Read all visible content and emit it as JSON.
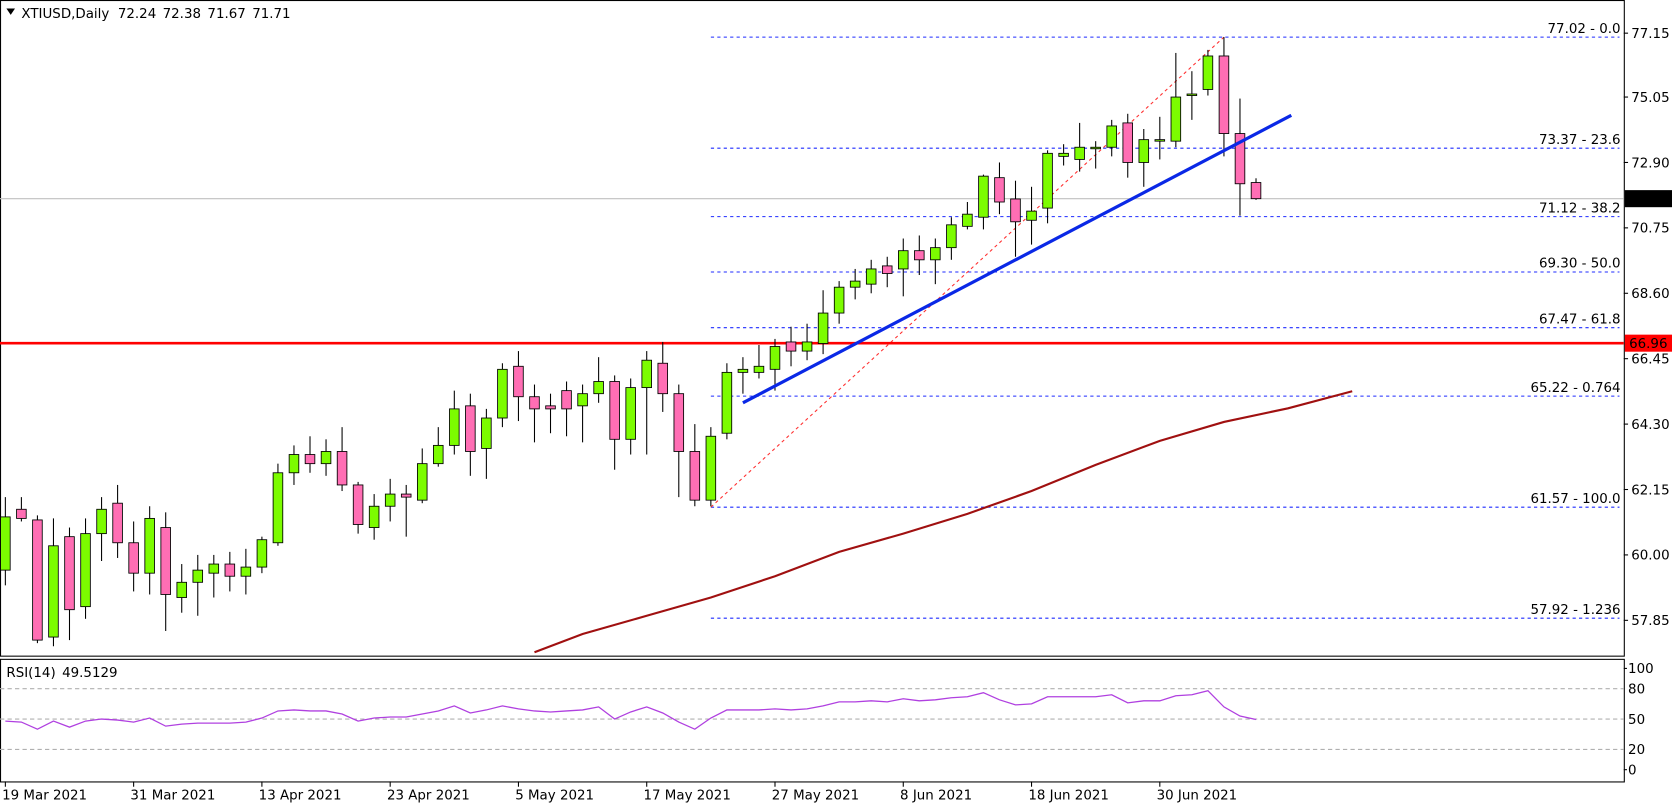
{
  "chart_data": {
    "type": "candlestick",
    "symbol": "XTIUSD,Daily",
    "categories": [
      "19 Mar 2021",
      null,
      null,
      null,
      null,
      null,
      null,
      null,
      "31 Mar 2021",
      null,
      null,
      null,
      null,
      null,
      null,
      null,
      "13 Apr 2021",
      null,
      null,
      null,
      null,
      null,
      null,
      null,
      "23 Apr 2021",
      null,
      null,
      null,
      null,
      null,
      null,
      null,
      "5 May 2021",
      null,
      null,
      null,
      null,
      null,
      null,
      null,
      "17 May 2021",
      null,
      null,
      null,
      null,
      null,
      null,
      null,
      "27 May 2021",
      null,
      null,
      null,
      null,
      null,
      null,
      null,
      "8 Jun 2021",
      null,
      null,
      null,
      null,
      null,
      null,
      null,
      "18 Jun 2021",
      null,
      null,
      null,
      null,
      null,
      null,
      null,
      "30 Jun 2021",
      null,
      null,
      null,
      null,
      null,
      null
    ],
    "open": [
      59.5,
      61.5,
      61.15,
      57.3,
      60.6,
      58.3,
      60.7,
      61.7,
      60.4,
      59.4,
      60.9,
      58.6,
      59.1,
      59.4,
      59.7,
      59.3,
      59.6,
      60.4,
      62.7,
      63.3,
      63.0,
      63.4,
      62.3,
      60.9,
      61.6,
      62.0,
      61.8,
      63.0,
      63.6,
      64.9,
      63.5,
      64.5,
      66.2,
      65.2,
      64.9,
      65.4,
      64.9,
      65.3,
      65.7,
      63.8,
      65.5,
      66.3,
      65.3,
      63.4,
      61.8,
      64.0,
      66.0,
      66.0,
      66.1,
      67.0,
      66.7,
      66.95,
      67.95,
      68.8,
      68.9,
      69.5,
      69.4,
      70.0,
      69.7,
      70.1,
      70.8,
      71.1,
      72.4,
      71.7,
      71.0,
      71.4,
      73.1,
      73.0,
      73.35,
      73.4,
      74.2,
      72.9,
      73.6,
      73.6,
      75.1,
      75.3,
      76.4,
      73.85,
      72.24
    ],
    "high": [
      61.9,
      61.9,
      61.3,
      61.2,
      60.9,
      61.2,
      61.9,
      62.3,
      61.1,
      61.6,
      61.4,
      59.7,
      60.0,
      60.0,
      60.1,
      60.2,
      60.6,
      63.0,
      63.6,
      63.9,
      63.8,
      64.2,
      62.4,
      62.0,
      62.5,
      62.3,
      63.5,
      64.2,
      65.4,
      65.3,
      64.8,
      66.3,
      66.7,
      65.6,
      65.3,
      65.7,
      65.6,
      66.5,
      65.9,
      65.8,
      66.7,
      67.0,
      65.6,
      64.3,
      64.2,
      66.3,
      66.5,
      66.9,
      67.1,
      67.5,
      67.6,
      68.7,
      69.0,
      69.4,
      69.7,
      69.8,
      70.4,
      70.5,
      70.4,
      71.1,
      71.6,
      72.5,
      72.9,
      72.3,
      72.1,
      73.3,
      73.5,
      74.2,
      73.6,
      74.3,
      74.5,
      74.0,
      74.4,
      76.5,
      75.9,
      76.6,
      77.02,
      75.0,
      72.38
    ],
    "low": [
      59.0,
      61.1,
      57.1,
      57.0,
      57.2,
      57.9,
      59.8,
      59.9,
      58.8,
      58.7,
      57.5,
      58.1,
      58.0,
      58.6,
      58.8,
      58.7,
      59.4,
      60.3,
      62.3,
      62.7,
      62.6,
      62.1,
      60.7,
      60.5,
      61.1,
      60.6,
      61.7,
      62.9,
      63.3,
      62.6,
      62.5,
      64.2,
      64.4,
      63.7,
      64.0,
      63.9,
      63.7,
      65.0,
      62.8,
      63.3,
      63.3,
      64.7,
      61.9,
      61.6,
      61.6,
      63.8,
      65.3,
      65.8,
      65.4,
      66.2,
      66.4,
      66.6,
      67.6,
      68.4,
      68.6,
      68.8,
      68.5,
      69.2,
      68.9,
      69.7,
      70.7,
      70.7,
      71.2,
      69.8,
      70.2,
      70.9,
      72.8,
      72.6,
      72.7,
      73.1,
      72.4,
      72.1,
      73.0,
      73.4,
      74.3,
      75.1,
      73.1,
      71.15,
      71.67
    ],
    "close": [
      61.25,
      61.2,
      57.2,
      60.3,
      58.2,
      60.7,
      61.5,
      60.4,
      59.4,
      61.2,
      58.7,
      59.1,
      59.5,
      59.7,
      59.3,
      59.6,
      60.5,
      62.7,
      63.3,
      63.0,
      63.4,
      62.3,
      61.0,
      61.6,
      62.0,
      61.9,
      63.0,
      63.6,
      64.8,
      63.4,
      64.5,
      66.1,
      65.2,
      64.8,
      64.8,
      64.8,
      65.3,
      65.7,
      63.8,
      65.5,
      66.4,
      65.3,
      63.4,
      61.8,
      63.9,
      66.0,
      66.1,
      66.2,
      66.85,
      66.7,
      67.0,
      67.95,
      68.8,
      69.0,
      69.4,
      69.25,
      70.0,
      69.7,
      70.1,
      70.85,
      71.2,
      72.45,
      71.6,
      70.95,
      71.3,
      73.2,
      73.2,
      73.4,
      73.4,
      74.1,
      72.9,
      73.65,
      73.65,
      75.05,
      75.15,
      76.4,
      73.85,
      72.2,
      71.71
    ],
    "up_color": "#7cfc00",
    "down_color": "#ff6eb4",
    "ylim": [
      56.69,
      78.24
    ],
    "yticks": [
      77.15,
      75.05,
      {
        "value": 72.9,
        "label": "72.90"
      },
      70.75,
      {
        "value": 68.6,
        "label": "68.60"
      },
      66.45,
      {
        "value": 64.3,
        "label": "64.30"
      },
      62.15,
      {
        "value": 60.0,
        "label": "60.00"
      },
      57.85
    ],
    "fib_levels": [
      {
        "value": 77.02,
        "label": "77.02 - 0.0"
      },
      {
        "value": 73.37,
        "label": "73.37 - 23.6"
      },
      {
        "value": 71.12,
        "label": "71.12 - 38.2"
      },
      {
        "value": 69.3,
        "label": "69.30 - 50.0"
      },
      {
        "value": 67.47,
        "label": "67.47 - 61.8"
      },
      {
        "value": 65.22,
        "label": "65.22 - 0.764"
      },
      {
        "value": 61.57,
        "label": "61.57 - 100.0"
      },
      {
        "value": 57.92,
        "label": "57.92 - 1.236"
      }
    ],
    "fib_color": "#1f2bff",
    "fib_diagonal": {
      "x": [
        44,
        76
      ],
      "values": [
        61.57,
        77.02
      ],
      "color": "#ff3030"
    },
    "trend_line": {
      "x": [
        46,
        80.2
      ],
      "values": [
        65.0,
        74.45
      ],
      "color": "#0a28e6"
    },
    "moving_average": {
      "x": [
        33,
        36,
        40,
        44,
        48,
        52,
        56,
        60,
        64,
        68,
        72,
        76,
        80,
        84
      ],
      "values": [
        56.8,
        57.4,
        58.0,
        58.6,
        59.3,
        60.1,
        60.7,
        61.35,
        62.1,
        62.96,
        63.75,
        64.37,
        64.82,
        65.38
      ],
      "color": "#a01010"
    },
    "horizontal_line": {
      "value": 66.96,
      "label": "66.96",
      "color": "#ff0000"
    },
    "rsi": {
      "title": "RSI(14)",
      "values": [
        48,
        47,
        40,
        48,
        42,
        48,
        50,
        49,
        47,
        51,
        43,
        45,
        46,
        46,
        46,
        47,
        51,
        58,
        59,
        58,
        58,
        55,
        48,
        51,
        52,
        52,
        55,
        58,
        63,
        56,
        59,
        63,
        60,
        58,
        57,
        58,
        59,
        62,
        50,
        57,
        62,
        56,
        47,
        40,
        51,
        59,
        59,
        59,
        60,
        59,
        60,
        63,
        67,
        67,
        68,
        67,
        70,
        68,
        69,
        71,
        72,
        76,
        69,
        64,
        65,
        72,
        72,
        72,
        72,
        74,
        66,
        68,
        68,
        73,
        74,
        78,
        62,
        53,
        49.5129
      ],
      "color": "#b040e0",
      "ylim": [
        0,
        100
      ],
      "yticks": [
        100,
        80,
        50,
        20,
        0
      ]
    }
  }
}
